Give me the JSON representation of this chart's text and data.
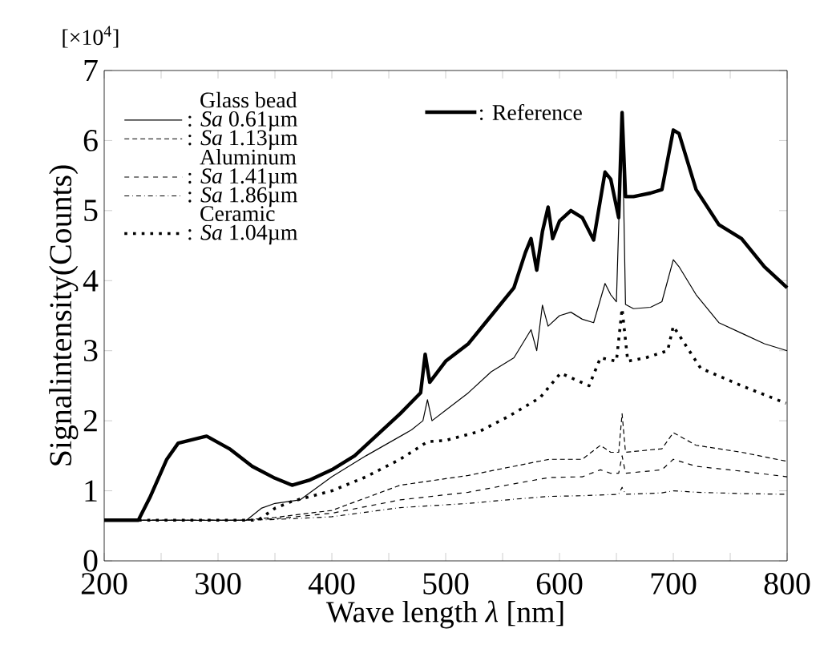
{
  "chart_data": {
    "type": "line",
    "xlabel": "Wave length *λ* [nm]",
    "ylabel": "Signalintensity(Counts)",
    "annotations": [
      "[×10$^{4}$]",
      "Glass bead",
      "Aluminum",
      "Ceramic"
    ],
    "xlim": [
      200,
      800
    ],
    "xticks": [
      200,
      300,
      400,
      500,
      600,
      700,
      800
    ],
    "ylim": [
      0,
      7
    ],
    "yticks": [
      0,
      1,
      2,
      3,
      4,
      5,
      6,
      7
    ],
    "grid": false,
    "legend": "top left",
    "series": [
      {
        "name": ": Reference",
        "color": "#000000",
        "line_style": "solid",
        "x": [
          200,
          230,
          240,
          255,
          265,
          290,
          310,
          330,
          350,
          365,
          380,
          400,
          420,
          440,
          460,
          478,
          482,
          486,
          500,
          520,
          540,
          560,
          570,
          575,
          580,
          585,
          590,
          594,
          600,
          610,
          620,
          630,
          640,
          645,
          652,
          655,
          658,
          665,
          680,
          690,
          700,
          705,
          720,
          740,
          760,
          780,
          800
        ],
        "values": [
          0.58,
          0.58,
          0.9,
          1.45,
          1.68,
          1.78,
          1.6,
          1.35,
          1.18,
          1.08,
          1.15,
          1.3,
          1.5,
          1.8,
          2.1,
          2.4,
          2.95,
          2.55,
          2.85,
          3.1,
          3.5,
          3.9,
          4.4,
          4.6,
          4.15,
          4.7,
          5.05,
          4.6,
          4.85,
          5.0,
          4.9,
          4.58,
          5.55,
          5.45,
          4.9,
          6.4,
          5.2,
          5.2,
          5.25,
          5.3,
          6.15,
          6.1,
          5.3,
          4.8,
          4.6,
          4.2,
          3.9
        ]
      },
      {
        "name": ": *Sa* 0.61µm",
        "color": "#000000",
        "line_style": "solid",
        "x": [
          200,
          325,
          338,
          350,
          372,
          400,
          430,
          470,
          480,
          484,
          488,
          500,
          520,
          540,
          560,
          575,
          580,
          585,
          590,
          600,
          610,
          620,
          630,
          640,
          645,
          650,
          655,
          658,
          665,
          680,
          690,
          700,
          705,
          720,
          740,
          760,
          780,
          800
        ],
        "values": [
          0.58,
          0.58,
          0.75,
          0.82,
          0.87,
          1.2,
          1.5,
          1.87,
          2.0,
          2.3,
          2.0,
          2.15,
          2.4,
          2.7,
          2.9,
          3.3,
          3.0,
          3.65,
          3.35,
          3.5,
          3.55,
          3.45,
          3.4,
          3.96,
          3.8,
          3.7,
          6.4,
          3.66,
          3.6,
          3.62,
          3.7,
          4.3,
          4.2,
          3.8,
          3.4,
          3.25,
          3.1,
          3.0
        ]
      },
      {
        "name": ": *Sa* 1.13µm",
        "color": "#000000",
        "line_style": "densely dashed",
        "x": [
          200,
          320,
          350,
          400,
          460,
          520,
          560,
          591,
          620,
          636,
          645,
          652,
          655,
          658,
          690,
          700,
          720,
          760,
          800
        ],
        "values": [
          0.58,
          0.58,
          0.62,
          0.72,
          1.08,
          1.22,
          1.35,
          1.45,
          1.45,
          1.65,
          1.55,
          1.55,
          2.1,
          1.55,
          1.6,
          1.83,
          1.65,
          1.55,
          1.42
        ]
      },
      {
        "name": ": *Sa* 1.41µm",
        "color": "#000000",
        "line_style": "dashed",
        "x": [
          200,
          320,
          350,
          400,
          460,
          520,
          560,
          591,
          620,
          636,
          645,
          652,
          655,
          658,
          690,
          700,
          720,
          760,
          800
        ],
        "values": [
          0.58,
          0.58,
          0.6,
          0.68,
          0.87,
          0.98,
          1.1,
          1.19,
          1.2,
          1.3,
          1.25,
          1.25,
          1.5,
          1.25,
          1.3,
          1.45,
          1.35,
          1.28,
          1.2
        ]
      },
      {
        "name": ": *Sa* 1.86µm",
        "color": "#000000",
        "line_style": "dashdot",
        "x": [
          200,
          320,
          350,
          400,
          460,
          520,
          560,
          591,
          620,
          652,
          655,
          658,
          690,
          700,
          720,
          760,
          800
        ],
        "values": [
          0.58,
          0.58,
          0.59,
          0.63,
          0.76,
          0.82,
          0.88,
          0.92,
          0.93,
          0.95,
          1.05,
          0.95,
          0.97,
          1.0,
          0.98,
          0.96,
          0.95
        ]
      },
      {
        "name": ": *Sa* 1.04µm",
        "color": "#000000",
        "line_style": "dotted",
        "x": [
          200,
          335,
          350,
          365,
          400,
          430,
          460,
          484,
          500,
          530,
          555,
          583,
          601,
          626,
          636,
          650,
          655,
          660,
          676,
          695,
          700,
          724,
          760,
          799
        ],
        "values": [
          0.58,
          0.58,
          0.75,
          0.85,
          1.0,
          1.2,
          1.45,
          1.7,
          1.72,
          1.85,
          2.06,
          2.33,
          2.68,
          2.5,
          2.9,
          2.85,
          3.6,
          2.85,
          2.9,
          3.0,
          3.35,
          2.75,
          2.5,
          2.25
        ]
      }
    ]
  }
}
